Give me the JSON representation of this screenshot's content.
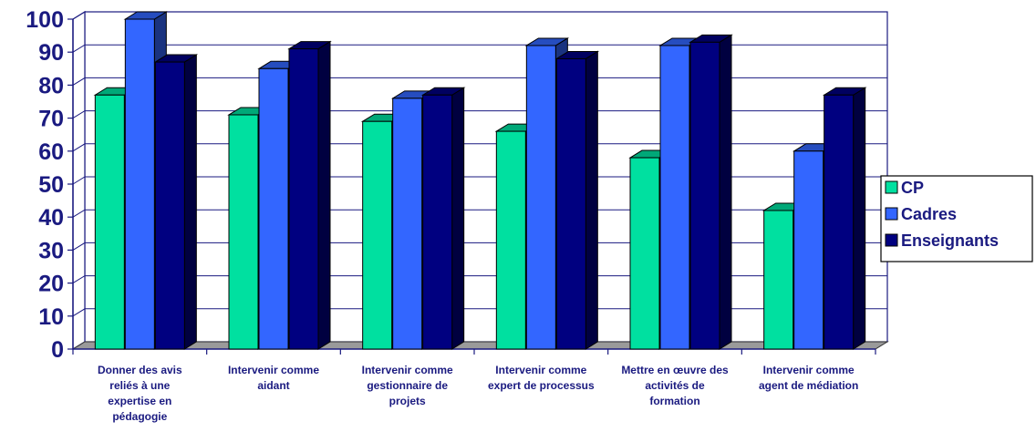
{
  "chart_data": {
    "type": "bar",
    "categories": [
      [
        "Donner des avis",
        "reliés à une",
        "expertise en",
        "pédagogie"
      ],
      [
        "Intervenir comme",
        "aidant"
      ],
      [
        "Intervenir comme",
        "gestionnaire de",
        "projets"
      ],
      [
        "Intervenir comme",
        "expert de processus"
      ],
      [
        "Mettre en œuvre des",
        "activités de",
        "formation"
      ],
      [
        "Intervenir comme",
        "agent de médiation"
      ]
    ],
    "series": [
      {
        "name": "CP",
        "color": "#00e0a0",
        "values": [
          77,
          71,
          69,
          66,
          58,
          42
        ]
      },
      {
        "name": "Cadres",
        "color": "#3366ff",
        "values": [
          100,
          85,
          76,
          92,
          92,
          60
        ]
      },
      {
        "name": "Enseignants",
        "color": "#000080",
        "values": [
          87,
          91,
          77,
          88,
          93,
          77
        ]
      }
    ],
    "ylim": [
      0,
      100
    ],
    "yticks": [
      0,
      10,
      20,
      30,
      40,
      50,
      60,
      70,
      80,
      90,
      100
    ],
    "grid": true,
    "style": "3d-clustered-column",
    "legend": "right"
  }
}
